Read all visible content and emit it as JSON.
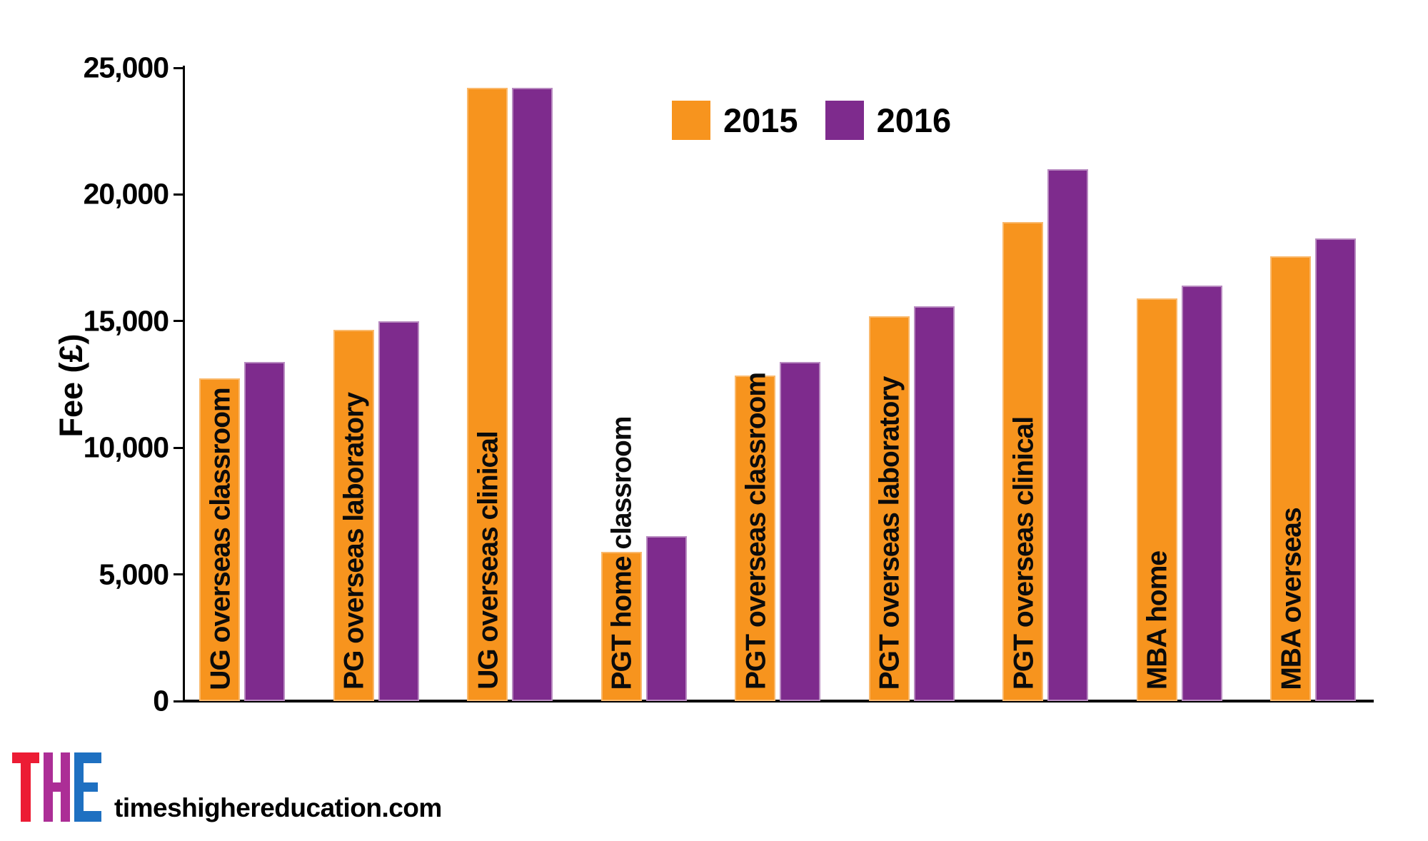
{
  "chart_data": {
    "type": "bar",
    "title": "",
    "xlabel": "",
    "ylabel": "Fee (£)",
    "categories": [
      "UG overseas classroom",
      "PG overseas laboratory",
      "UG overseas clinical",
      "PGT home classroom",
      "PGT overseas classroom",
      "PGT overseas laboratory",
      "PGT overseas clinical",
      "MBA home",
      "MBA overseas"
    ],
    "series": [
      {
        "name": "2015",
        "color": "#F7941E",
        "values": [
          12750,
          14650,
          24200,
          5900,
          12850,
          15200,
          18900,
          15900,
          17550
        ]
      },
      {
        "name": "2016",
        "color": "#7E2B8D",
        "values": [
          13400,
          15000,
          24200,
          6500,
          13400,
          15600,
          21000,
          16400,
          18250
        ]
      }
    ],
    "ylim": [
      0,
      25000
    ],
    "yticks": [
      0,
      5000,
      10000,
      15000,
      20000,
      25000
    ],
    "ytick_labels": [
      "0",
      "5,000",
      "10,000",
      "15,000",
      "20,000",
      "25,000"
    ],
    "legend_position": "top-center",
    "grid": false
  },
  "legend": {
    "items": [
      {
        "label": "2015",
        "color": "#F7941E"
      },
      {
        "label": "2016",
        "color": "#7E2B8D"
      }
    ]
  },
  "footer": {
    "site": "timeshighereducation.com",
    "logo_letters": [
      {
        "char": "T",
        "color": "#EC1C34"
      },
      {
        "char": "H",
        "color": "#AC2E96"
      },
      {
        "char": "E",
        "color": "#1E70C1"
      }
    ]
  }
}
